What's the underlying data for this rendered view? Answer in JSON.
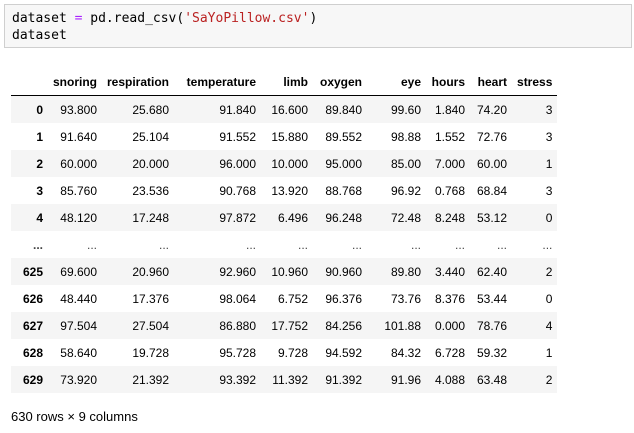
{
  "code": {
    "line1": {
      "var": "dataset",
      "op": " = ",
      "call": "pd.read_csv(",
      "str": "'SaYoPillow.csv'",
      "close": ")"
    },
    "line2": "dataset"
  },
  "table": {
    "columns": [
      "",
      "snoring",
      "respiration",
      "temperature",
      "limb",
      "oxygen",
      "eye",
      "hours",
      "heart",
      "stress"
    ],
    "rows": [
      [
        "0",
        "93.800",
        "25.680",
        "91.840",
        "16.600",
        "89.840",
        "99.60",
        "1.840",
        "74.20",
        "3"
      ],
      [
        "1",
        "91.640",
        "25.104",
        "91.552",
        "15.880",
        "89.552",
        "98.88",
        "1.552",
        "72.76",
        "3"
      ],
      [
        "2",
        "60.000",
        "20.000",
        "96.000",
        "10.000",
        "95.000",
        "85.00",
        "7.000",
        "60.00",
        "1"
      ],
      [
        "3",
        "85.760",
        "23.536",
        "90.768",
        "13.920",
        "88.768",
        "96.92",
        "0.768",
        "68.84",
        "3"
      ],
      [
        "4",
        "48.120",
        "17.248",
        "97.872",
        "6.496",
        "96.248",
        "72.48",
        "8.248",
        "53.12",
        "0"
      ],
      [
        "...",
        "...",
        "...",
        "...",
        "...",
        "...",
        "...",
        "...",
        "...",
        "..."
      ],
      [
        "625",
        "69.600",
        "20.960",
        "92.960",
        "10.960",
        "90.960",
        "89.80",
        "3.440",
        "62.40",
        "2"
      ],
      [
        "626",
        "48.440",
        "17.376",
        "98.064",
        "6.752",
        "96.376",
        "73.76",
        "8.376",
        "53.44",
        "0"
      ],
      [
        "627",
        "97.504",
        "27.504",
        "86.880",
        "17.752",
        "84.256",
        "101.88",
        "0.000",
        "78.76",
        "4"
      ],
      [
        "628",
        "58.640",
        "19.728",
        "95.728",
        "9.728",
        "94.592",
        "84.32",
        "6.728",
        "59.32",
        "1"
      ],
      [
        "629",
        "73.920",
        "21.392",
        "93.392",
        "11.392",
        "91.392",
        "91.96",
        "4.088",
        "63.48",
        "2"
      ]
    ]
  },
  "shape_text": "630 rows × 9 columns"
}
